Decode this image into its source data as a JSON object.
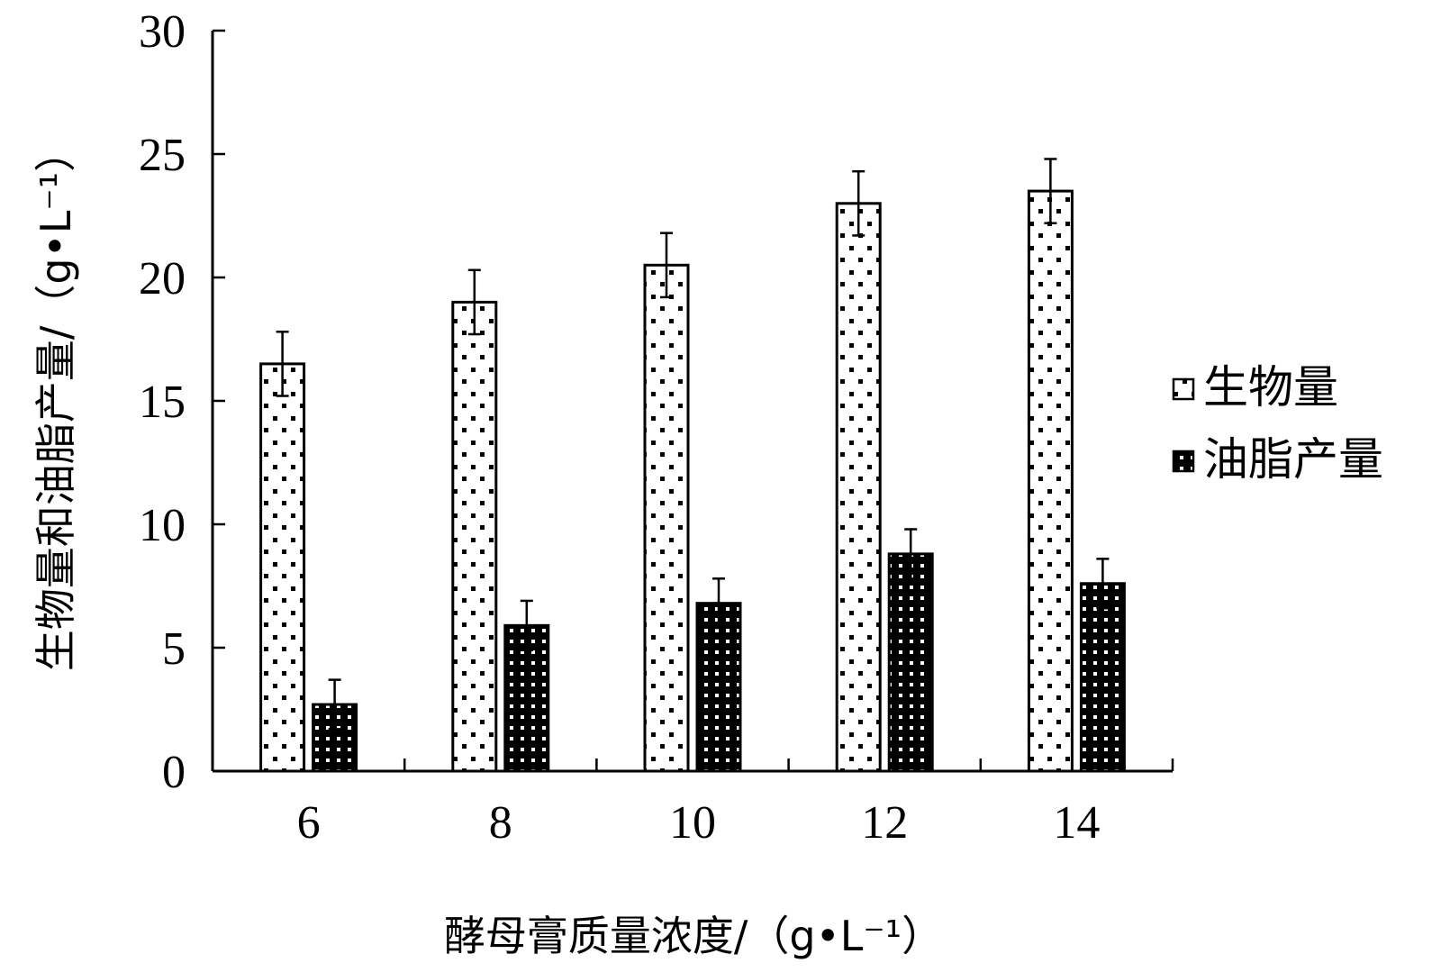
{
  "chart_data": {
    "type": "bar",
    "categories": [
      "6",
      "8",
      "10",
      "12",
      "14"
    ],
    "series": [
      {
        "name": "生物量",
        "values": [
          16.5,
          19.0,
          20.5,
          23.0,
          23.5
        ],
        "errors": [
          1.3,
          1.3,
          1.3,
          1.3,
          1.3
        ],
        "pattern": "sparse-dots"
      },
      {
        "name": "油脂产量",
        "values": [
          2.7,
          5.9,
          6.8,
          8.8,
          7.6
        ],
        "errors": [
          1.0,
          1.0,
          1.0,
          1.0,
          1.0
        ],
        "pattern": "dense-checker"
      }
    ],
    "xlabel": "酵母膏质量浓度/（g•L⁻¹）",
    "ylabel": "生物量和油脂产量/（g•L⁻¹）",
    "ylim": [
      0,
      30
    ],
    "yticks": [
      "0",
      "5",
      "10",
      "15",
      "20",
      "25",
      "30"
    ],
    "grid": false,
    "legend_position": "right"
  }
}
